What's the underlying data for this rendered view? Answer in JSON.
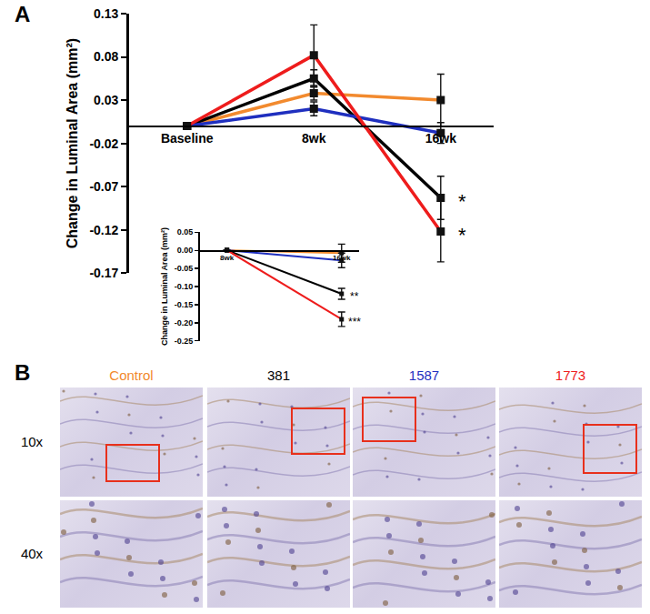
{
  "panel_labels": [
    "A",
    "B"
  ],
  "chart_data": [
    {
      "type": "line",
      "y_label": "Change in Luminal Area (mm²)",
      "categories": [
        "Baseline",
        "8wk",
        "16wk"
      ],
      "ylim": [
        -0.17,
        0.13
      ],
      "yticks": [
        -0.17,
        -0.12,
        -0.07,
        -0.02,
        0.03,
        0.08,
        0.13
      ],
      "marker": "square",
      "series": [
        {
          "name": "Control",
          "color": "#f28a2e",
          "values": [
            0,
            0.038,
            0.03
          ],
          "error": [
            0,
            0.008,
            0.03
          ]
        },
        {
          "name": "381",
          "color": "#000000",
          "values": [
            0,
            0.055,
            -0.083
          ],
          "error": [
            0,
            0.01,
            0.025
          ]
        },
        {
          "name": "1587",
          "color": "#1f2fbf",
          "values": [
            0,
            0.02,
            -0.008
          ],
          "error": [
            0,
            0.008,
            0.012
          ]
        },
        {
          "name": "1773",
          "color": "#ee1c1c",
          "values": [
            0,
            0.082,
            -0.122
          ],
          "error": [
            0,
            0.035,
            0.035
          ]
        }
      ],
      "annotations": [
        {
          "x": "16wk",
          "y": -0.083,
          "text": "*"
        },
        {
          "x": "16wk",
          "y": -0.122,
          "text": "*"
        }
      ]
    },
    {
      "type": "line",
      "y_label": "Change in Luminal Area (mm²)",
      "categories": [
        "8wk",
        "16wk"
      ],
      "ylim": [
        -0.25,
        0.05
      ],
      "yticks": [
        {
          "value": -0.25,
          "label": "-0.25"
        },
        {
          "value": -0.2,
          "label": "-0.20"
        },
        {
          "value": -0.15,
          "label": "-0.15"
        },
        {
          "value": -0.1,
          "label": "-0.10"
        },
        -0.05,
        {
          "value": 0,
          "label": "0.00"
        },
        0.05
      ],
      "marker": "square",
      "series": [
        {
          "name": "Control",
          "color": "#f28a2e",
          "values": [
            0,
            -0.008
          ],
          "error": [
            0,
            0.025
          ]
        },
        {
          "name": "381",
          "color": "#000000",
          "values": [
            0,
            -0.12
          ],
          "error": [
            0,
            0.015
          ]
        },
        {
          "name": "1587",
          "color": "#1f2fbf",
          "values": [
            0,
            -0.028
          ],
          "error": [
            0,
            0.02
          ]
        },
        {
          "name": "1773",
          "color": "#ee1c1c",
          "values": [
            0,
            -0.19
          ],
          "error": [
            0,
            0.02
          ]
        }
      ],
      "annotations": [
        {
          "x": "16wk",
          "y": -0.12,
          "text": "**"
        },
        {
          "x": "16wk",
          "y": -0.19,
          "text": "***"
        }
      ]
    }
  ],
  "micrographs": {
    "rows": [
      "10x",
      "40x"
    ]
  }
}
